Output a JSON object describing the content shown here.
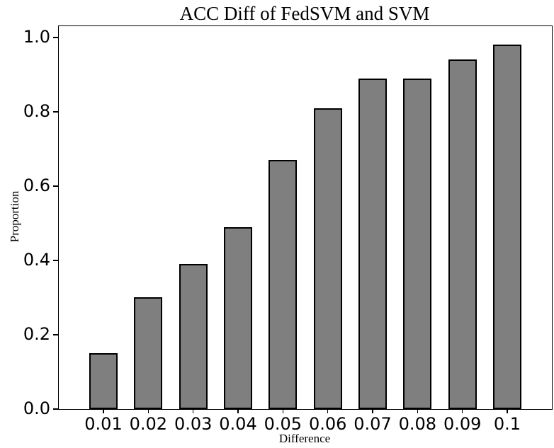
{
  "chart_data": {
    "type": "bar",
    "title": "ACC Diff of FedSVM and SVM",
    "xlabel": "Difference",
    "ylabel": "Proportion",
    "categories": [
      "0.01",
      "0.02",
      "0.03",
      "0.04",
      "0.05",
      "0.06",
      "0.07",
      "0.08",
      "0.09",
      "0.1"
    ],
    "values": [
      0.15,
      0.3,
      0.39,
      0.49,
      0.67,
      0.81,
      0.89,
      0.89,
      0.94,
      0.98
    ],
    "yticks": [
      0.0,
      0.2,
      0.4,
      0.6,
      0.8,
      1.0
    ],
    "ytick_labels": [
      "0.0",
      "0.2",
      "0.4",
      "0.6",
      "0.8",
      "1.0"
    ],
    "ylim": [
      0,
      1.03
    ],
    "grid": false,
    "legend": null,
    "bar_color": "#7f7f7f",
    "bar_edge_color": "#000000",
    "axis_color": "#000000"
  }
}
